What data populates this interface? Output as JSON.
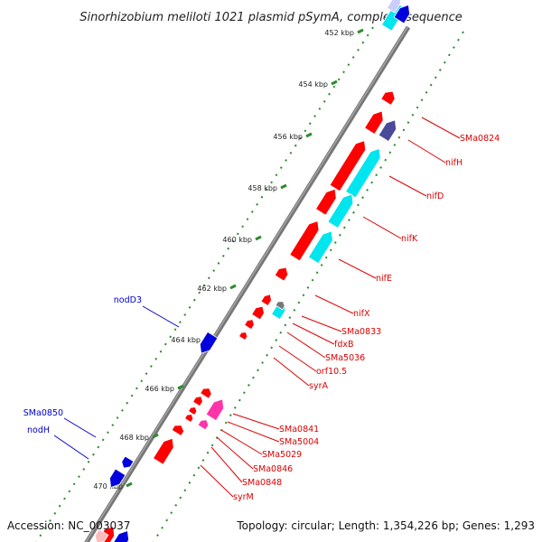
{
  "title": "Sinorhizobium meliloti 1021 plasmid pSymA, complete sequence",
  "footer": {
    "accession": "Accession: NC_003037",
    "topology": "Topology: circular; Length: 1,354,226 bp; Genes: 1,293"
  },
  "colors": {
    "backbone": "#777777",
    "tick": "#2e8b2e",
    "gene_red": "#ff0000",
    "gene_blue": "#0000dd",
    "gene_cyan": "#00e5ee",
    "gene_slate": "#4a4a9a",
    "gene_pink": "#ff33aa",
    "label_red": "#dd0000",
    "label_blue": "#0000cc"
  },
  "scale_labels": [
    "452 kbp",
    "454 kbp",
    "456 kbp",
    "458 kbp",
    "460 kbp",
    "462 kbp",
    "464 kbp",
    "466 kbp",
    "468 kbp",
    "470 kbp"
  ],
  "gene_labels_right": [
    "SMa0824",
    "nifH",
    "nifD",
    "nifK",
    "nifE",
    "nifX",
    "SMa0833",
    "fdxB",
    "SMa5036",
    "orf10.5",
    "syrA",
    "SMa0841",
    "SMa5004",
    "SMa5029",
    "SMa0846",
    "SMa0848",
    "syrM"
  ],
  "gene_labels_left": [
    "nodD3",
    "SMa0850",
    "nodH"
  ]
}
